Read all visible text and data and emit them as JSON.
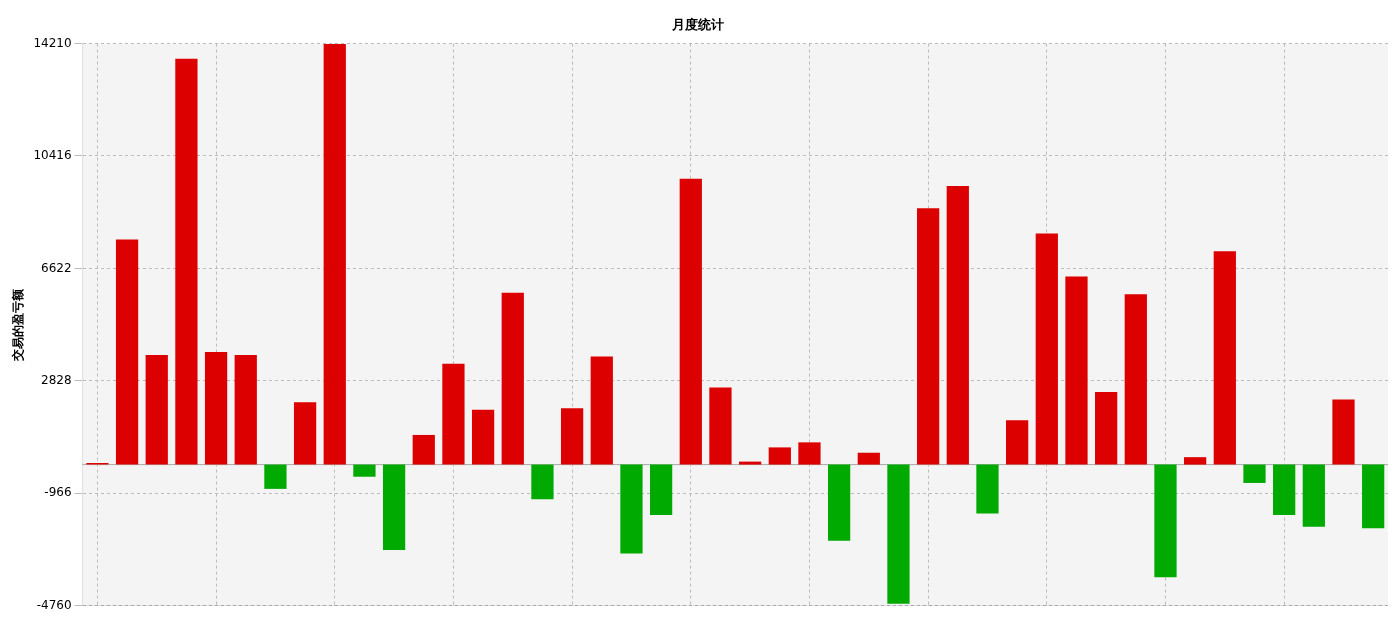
{
  "chart_data": {
    "type": "bar",
    "title": "月度统计",
    "ylabel": "交易的盈亏额",
    "categories": [
      null,
      null,
      null,
      null,
      null,
      null,
      null,
      null,
      null,
      null,
      null,
      null,
      null,
      null,
      null,
      null,
      null,
      null,
      null,
      null,
      null,
      null,
      null,
      null,
      null,
      null,
      null,
      null,
      null,
      null,
      null,
      null,
      null,
      null,
      null,
      null,
      null,
      null,
      null,
      null,
      null,
      null,
      null,
      null
    ],
    "values": [
      50,
      7600,
      3700,
      13700,
      3800,
      3700,
      -820,
      2100,
      14200,
      -410,
      -2880,
      1000,
      3400,
      1850,
      5800,
      -1170,
      1900,
      3650,
      -3000,
      -1700,
      9650,
      2600,
      100,
      580,
      750,
      -2570,
      400,
      -4700,
      8650,
      9400,
      -1650,
      1500,
      7800,
      6350,
      2450,
      5750,
      -3800,
      250,
      7200,
      -620,
      -1700,
      -2100,
      2200,
      -2150
    ],
    "colors": [
      "#dd0000",
      "#dd0000",
      "#dd0000",
      "#dd0000",
      "#dd0000",
      "#dd0000",
      "#00aa00",
      "#dd0000",
      "#dd0000",
      "#00aa00",
      "#00aa00",
      "#dd0000",
      "#dd0000",
      "#dd0000",
      "#dd0000",
      "#00aa00",
      "#dd0000",
      "#dd0000",
      "#00aa00",
      "#00aa00",
      "#dd0000",
      "#dd0000",
      "#dd0000",
      "#dd0000",
      "#dd0000",
      "#00aa00",
      "#dd0000",
      "#00aa00",
      "#dd0000",
      "#dd0000",
      "#00aa00",
      "#dd0000",
      "#dd0000",
      "#dd0000",
      "#dd0000",
      "#dd0000",
      "#00aa00",
      "#dd0000",
      "#dd0000",
      "#00aa00",
      "#00aa00",
      "#00aa00",
      "#dd0000",
      "#00aa00"
    ],
    "ylim": [
      -4760,
      14210
    ],
    "yticks": [
      -4760,
      -966,
      2828,
      6622,
      10416,
      14210
    ],
    "grid": true,
    "legend": false
  }
}
